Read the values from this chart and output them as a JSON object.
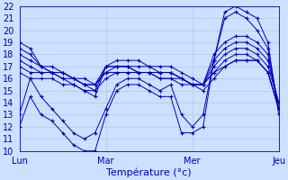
{
  "background_color": "#cce0ff",
  "plot_bg_color": "#cce0ff",
  "line_color": "#0000bb",
  "marker": "+",
  "xlabel": "Température (°c)",
  "xtick_labels": [
    "Lun",
    "Mar",
    "Mer",
    "Jeu"
  ],
  "xtick_positions": [
    0,
    8,
    16,
    24
  ],
  "ylim": [
    10,
    22
  ],
  "yticks": [
    10,
    11,
    12,
    13,
    14,
    15,
    16,
    17,
    18,
    19,
    20,
    21,
    22
  ],
  "series": [
    [
      12.0,
      14.5,
      13.0,
      12.5,
      11.5,
      10.5,
      10.0,
      10.0,
      13.0,
      15.0,
      15.5,
      15.5,
      15.0,
      14.5,
      14.5,
      11.5,
      11.5,
      12.0,
      17.5,
      21.5,
      22.0,
      21.5,
      21.0,
      19.0,
      13.0
    ],
    [
      13.0,
      16.0,
      14.5,
      13.5,
      12.5,
      11.5,
      11.0,
      11.5,
      13.5,
      15.5,
      16.0,
      16.0,
      15.5,
      15.0,
      15.5,
      13.0,
      12.0,
      13.0,
      17.5,
      21.0,
      21.5,
      21.0,
      20.0,
      18.5,
      13.5
    ],
    [
      19.0,
      18.5,
      17.0,
      16.5,
      16.0,
      15.5,
      15.0,
      14.5,
      17.0,
      17.5,
      17.5,
      17.5,
      17.0,
      17.0,
      17.0,
      16.5,
      16.0,
      15.5,
      18.0,
      19.0,
      19.5,
      19.5,
      19.0,
      18.0,
      13.5
    ],
    [
      18.5,
      18.0,
      17.0,
      16.5,
      16.5,
      16.0,
      15.5,
      15.0,
      17.0,
      17.0,
      17.0,
      17.0,
      17.0,
      16.5,
      16.5,
      16.0,
      15.5,
      15.5,
      17.5,
      18.5,
      19.0,
      19.0,
      18.5,
      17.5,
      14.0
    ],
    [
      18.0,
      17.5,
      17.0,
      17.0,
      16.5,
      16.0,
      16.0,
      15.5,
      17.0,
      17.0,
      17.0,
      16.5,
      16.5,
      16.5,
      16.5,
      16.0,
      15.5,
      15.5,
      17.0,
      18.0,
      18.5,
      18.5,
      18.0,
      17.0,
      14.0
    ],
    [
      17.5,
      17.0,
      16.5,
      16.5,
      16.5,
      16.0,
      15.5,
      15.5,
      16.5,
      17.0,
      17.0,
      16.5,
      16.5,
      16.5,
      16.5,
      16.0,
      15.5,
      15.5,
      16.5,
      17.5,
      18.0,
      18.0,
      17.5,
      16.5,
      13.5
    ],
    [
      17.0,
      16.5,
      16.5,
      16.5,
      16.0,
      16.0,
      15.5,
      15.5,
      16.5,
      16.5,
      16.5,
      16.5,
      16.5,
      16.0,
      16.0,
      16.0,
      15.5,
      15.5,
      16.5,
      17.0,
      17.5,
      17.5,
      17.5,
      16.5,
      13.5
    ],
    [
      16.5,
      16.0,
      16.0,
      16.0,
      15.5,
      15.5,
      15.0,
      15.0,
      16.0,
      16.5,
      16.5,
      16.5,
      16.5,
      16.0,
      16.0,
      15.5,
      15.5,
      15.0,
      16.0,
      17.0,
      17.5,
      17.5,
      17.5,
      16.5,
      13.5
    ]
  ]
}
